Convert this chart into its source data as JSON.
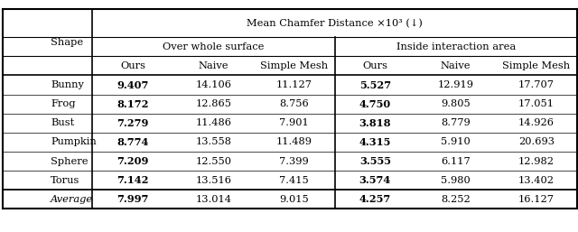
{
  "title": "Mean Chamfer Distance ×10³ (↓)",
  "col_group1": "Over whole surface",
  "col_group2": "Inside interaction area",
  "shape_col": "Shape",
  "sub_headers": [
    "Ours",
    "Naive",
    "Simple Mesh",
    "Ours",
    "Naive",
    "Simple Mesh"
  ],
  "shapes": [
    "Bunny",
    "Frog",
    "Bust",
    "Pumpkin",
    "Sphere",
    "Torus"
  ],
  "average_label": "Average",
  "data": [
    [
      "9.407",
      "14.106",
      "11.127",
      "5.527",
      "12.919",
      "17.707"
    ],
    [
      "8.172",
      "12.865",
      "8.756",
      "4.750",
      "9.805",
      "17.051"
    ],
    [
      "7.279",
      "11.486",
      "7.901",
      "3.818",
      "8.779",
      "14.926"
    ],
    [
      "8.774",
      "13.558",
      "11.489",
      "4.315",
      "5.910",
      "20.693"
    ],
    [
      "7.209",
      "12.550",
      "7.399",
      "3.555",
      "6.117",
      "12.982"
    ],
    [
      "7.142",
      "13.516",
      "7.415",
      "3.574",
      "5.980",
      "13.402"
    ]
  ],
  "average_row": [
    "7.997",
    "13.014",
    "9.015",
    "4.257",
    "8.252",
    "16.127"
  ],
  "bold_cols": [
    0,
    3
  ],
  "bg_color": "white",
  "figsize": [
    6.4,
    2.57
  ],
  "dpi": 100
}
